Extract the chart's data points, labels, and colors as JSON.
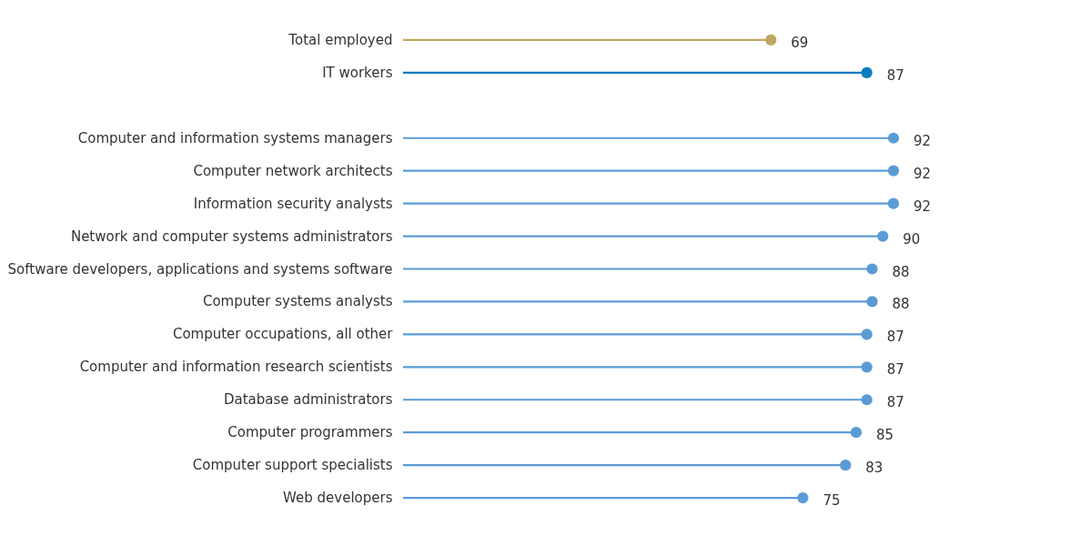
{
  "chart_data": {
    "type": "lollipop",
    "orientation": "horizontal",
    "data_labels": true,
    "grid": false,
    "categories": [
      "Total employed",
      "IT workers",
      null,
      "Computer and information systems managers",
      "Computer network architects",
      "Information security analysts",
      "Network and computer systems administrators",
      "Software developers, applications and systems software",
      "Computer systems analysts",
      "Computer occupations, all other",
      "Computer and information research scientists",
      "Database administrators",
      "Computer programmers",
      "Computer support specialists",
      "Web developers"
    ],
    "values": [
      69,
      87,
      null,
      92,
      92,
      92,
      90,
      88,
      88,
      87,
      87,
      87,
      85,
      83,
      75
    ],
    "colors": [
      "#bfa760",
      "#0a7bbf",
      null,
      "#5b9bd5",
      "#5b9bd5",
      "#5b9bd5",
      "#5b9bd5",
      "#5b9bd5",
      "#5b9bd5",
      "#5b9bd5",
      "#5b9bd5",
      "#5b9bd5",
      "#5b9bd5",
      "#5b9bd5",
      "#5b9bd5"
    ]
  }
}
